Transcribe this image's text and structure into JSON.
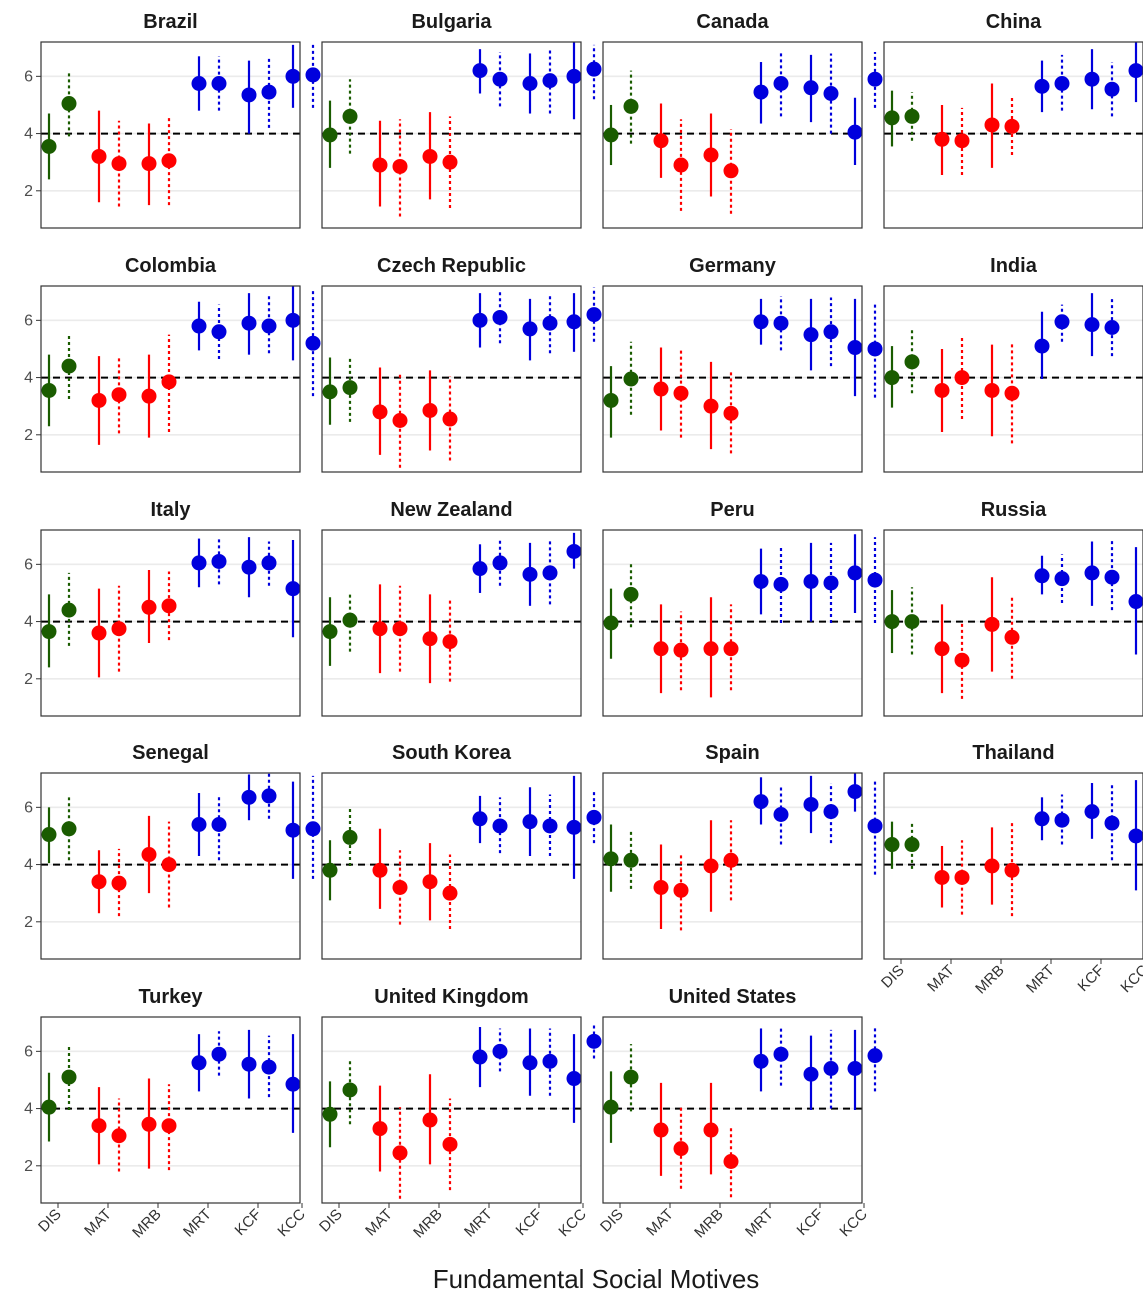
{
  "chart_data": {
    "type": "scatter",
    "subtype": "point-range facets",
    "xlabel": "Fundamental Social Motives",
    "categories": [
      "DIS",
      "MAT",
      "MRB",
      "MRT",
      "KCF",
      "KCC"
    ],
    "category_colors": {
      "DIS": "#1a5c00",
      "MAT": "#ff0000",
      "MRB": "#ff0000",
      "MRT": "#0000dd",
      "KCF": "#0000dd",
      "KCC": "#0000dd"
    },
    "series": [
      {
        "line_style": "solid"
      },
      {
        "line_style": "dotted"
      }
    ],
    "reference_line": 4,
    "ylim": [
      0.7,
      7.2
    ],
    "yticks": [
      2,
      4,
      6
    ],
    "grid": "horizontal major gridlines",
    "facets": [
      {
        "title": "Brazil",
        "solid": [
          [
            3.55,
            2.4,
            4.7
          ],
          [
            3.2,
            1.6,
            4.8
          ],
          [
            2.95,
            1.5,
            4.35
          ],
          [
            5.75,
            4.8,
            6.7
          ],
          [
            5.35,
            4.0,
            6.55
          ],
          [
            6.0,
            4.9,
            7.1
          ]
        ],
        "dotted": [
          [
            5.05,
            3.9,
            6.2
          ],
          [
            2.95,
            1.45,
            4.45
          ],
          [
            3.05,
            1.5,
            4.55
          ],
          [
            5.75,
            4.8,
            6.7
          ],
          [
            5.45,
            4.2,
            6.7
          ],
          [
            6.05,
            4.9,
            7.2
          ]
        ]
      },
      {
        "title": "Bulgaria",
        "solid": [
          [
            3.95,
            2.8,
            5.15
          ],
          [
            2.9,
            1.45,
            4.45
          ],
          [
            3.2,
            1.7,
            4.75
          ],
          [
            6.2,
            5.4,
            6.95
          ],
          [
            5.75,
            4.7,
            6.8
          ],
          [
            6.0,
            4.5,
            7.2
          ]
        ],
        "dotted": [
          [
            4.6,
            3.3,
            5.9
          ],
          [
            2.85,
            1.1,
            4.5
          ],
          [
            3.0,
            1.4,
            4.6
          ],
          [
            5.9,
            4.95,
            6.85
          ],
          [
            5.85,
            4.7,
            7.0
          ],
          [
            6.25,
            5.2,
            7.1
          ]
        ]
      },
      {
        "title": "Canada",
        "solid": [
          [
            3.95,
            2.9,
            5.0
          ],
          [
            3.75,
            2.45,
            5.05
          ],
          [
            3.25,
            1.8,
            4.7
          ],
          [
            5.45,
            4.35,
            6.5
          ],
          [
            5.6,
            4.4,
            6.75
          ],
          [
            4.05,
            2.9,
            5.25
          ]
        ],
        "dotted": [
          [
            4.95,
            3.65,
            6.2
          ],
          [
            2.9,
            1.3,
            4.5
          ],
          [
            2.7,
            1.2,
            4.15
          ],
          [
            5.75,
            4.6,
            6.9
          ],
          [
            5.4,
            4.0,
            6.8
          ],
          [
            5.9,
            4.9,
            6.85
          ]
        ]
      },
      {
        "title": "China",
        "solid": [
          [
            4.55,
            3.55,
            5.5
          ],
          [
            3.8,
            2.55,
            5.0
          ],
          [
            4.3,
            2.8,
            5.75
          ],
          [
            5.65,
            4.75,
            6.55
          ],
          [
            5.9,
            4.85,
            6.95
          ],
          [
            6.2,
            5.1,
            7.25
          ]
        ],
        "dotted": [
          [
            4.6,
            3.75,
            5.45
          ],
          [
            3.75,
            2.55,
            4.9
          ],
          [
            4.25,
            3.25,
            5.3
          ],
          [
            5.75,
            4.8,
            6.75
          ],
          [
            5.55,
            4.6,
            6.5
          ],
          null
        ]
      },
      {
        "title": "Colombia",
        "solid": [
          [
            3.55,
            2.3,
            4.8
          ],
          [
            3.2,
            1.65,
            4.75
          ],
          [
            3.35,
            1.9,
            4.8
          ],
          [
            5.8,
            4.95,
            6.65
          ],
          [
            5.9,
            4.8,
            6.95
          ],
          [
            6.0,
            4.6,
            7.2
          ]
        ],
        "dotted": [
          [
            4.4,
            3.25,
            5.5
          ],
          [
            3.4,
            2.05,
            4.7
          ],
          [
            3.85,
            2.1,
            5.5
          ],
          [
            5.6,
            4.65,
            6.55
          ],
          [
            5.8,
            4.85,
            6.9
          ],
          [
            5.2,
            3.35,
            7.05
          ]
        ]
      },
      {
        "title": "Czech Republic",
        "solid": [
          [
            3.5,
            2.35,
            4.7
          ],
          [
            2.8,
            1.3,
            4.35
          ],
          [
            2.85,
            1.45,
            4.25
          ],
          [
            6.0,
            5.05,
            6.95
          ],
          [
            5.7,
            4.6,
            6.75
          ],
          [
            5.95,
            4.9,
            6.95
          ]
        ],
        "dotted": [
          [
            3.65,
            2.45,
            4.75
          ],
          [
            2.5,
            0.85,
            4.1
          ],
          [
            2.55,
            1.1,
            4.05
          ],
          [
            6.1,
            5.2,
            7.0
          ],
          [
            5.9,
            4.85,
            6.9
          ],
          [
            6.2,
            5.25,
            7.15
          ]
        ]
      },
      {
        "title": "Germany",
        "solid": [
          [
            3.2,
            1.9,
            4.4
          ],
          [
            3.6,
            2.15,
            5.05
          ],
          [
            3.0,
            1.5,
            4.55
          ],
          [
            5.95,
            5.15,
            6.75
          ],
          [
            5.5,
            4.25,
            6.75
          ],
          [
            5.05,
            3.35,
            6.75
          ]
        ],
        "dotted": [
          [
            3.95,
            2.7,
            5.25
          ],
          [
            3.45,
            1.9,
            4.95
          ],
          [
            2.75,
            1.35,
            4.25
          ],
          [
            5.9,
            4.95,
            6.85
          ],
          [
            5.6,
            4.4,
            6.8
          ],
          [
            5.0,
            3.3,
            6.65
          ]
        ]
      },
      {
        "title": "India",
        "solid": [
          [
            4.0,
            2.95,
            5.1
          ],
          [
            3.55,
            2.1,
            5.0
          ],
          [
            3.55,
            1.95,
            5.15
          ],
          [
            5.1,
            3.95,
            6.3
          ],
          [
            5.85,
            4.75,
            6.95
          ],
          null
        ],
        "dotted": [
          [
            4.55,
            3.45,
            5.7
          ],
          [
            4.0,
            2.55,
            5.45
          ],
          [
            3.45,
            1.7,
            5.25
          ],
          [
            5.95,
            5.25,
            6.55
          ],
          [
            5.75,
            4.75,
            6.75
          ],
          null
        ]
      },
      {
        "title": "Italy",
        "solid": [
          [
            3.65,
            2.4,
            4.95
          ],
          [
            3.6,
            2.05,
            5.15
          ],
          [
            4.5,
            3.25,
            5.8
          ],
          [
            6.05,
            5.2,
            6.9
          ],
          [
            5.9,
            4.85,
            6.95
          ],
          [
            5.15,
            3.45,
            6.85
          ]
        ],
        "dotted": [
          [
            4.4,
            3.15,
            5.7
          ],
          [
            3.75,
            2.25,
            5.25
          ],
          [
            4.55,
            3.35,
            5.75
          ],
          [
            6.1,
            5.3,
            6.9
          ],
          [
            6.05,
            5.25,
            6.8
          ],
          null
        ]
      },
      {
        "title": "New Zealand",
        "solid": [
          [
            3.65,
            2.45,
            4.85
          ],
          [
            3.75,
            2.2,
            5.3
          ],
          [
            3.4,
            1.85,
            4.95
          ],
          [
            5.85,
            5.0,
            6.7
          ],
          [
            5.65,
            4.55,
            6.75
          ],
          [
            6.45,
            5.85,
            7.1
          ]
        ],
        "dotted": [
          [
            4.05,
            2.95,
            4.95
          ],
          [
            3.75,
            2.25,
            5.25
          ],
          [
            3.3,
            1.9,
            4.8
          ],
          [
            6.05,
            5.25,
            6.85
          ],
          [
            5.7,
            4.6,
            6.85
          ],
          null
        ]
      },
      {
        "title": "Peru",
        "solid": [
          [
            3.95,
            2.7,
            5.15
          ],
          [
            3.05,
            1.5,
            4.6
          ],
          [
            3.05,
            1.35,
            4.85
          ],
          [
            5.4,
            4.25,
            6.55
          ],
          [
            5.4,
            4.0,
            6.75
          ],
          [
            5.7,
            4.3,
            7.05
          ]
        ],
        "dotted": [
          [
            4.95,
            3.8,
            6.1
          ],
          [
            3.0,
            1.6,
            4.35
          ],
          [
            3.05,
            1.6,
            4.6
          ],
          [
            5.3,
            3.95,
            6.6
          ],
          [
            5.35,
            3.95,
            6.75
          ],
          [
            5.45,
            3.95,
            6.95
          ]
        ]
      },
      {
        "title": "Russia",
        "solid": [
          [
            4.0,
            2.9,
            5.1
          ],
          [
            3.05,
            1.5,
            4.6
          ],
          [
            3.9,
            2.25,
            5.55
          ],
          [
            5.6,
            4.95,
            6.3
          ],
          [
            5.7,
            4.55,
            6.8
          ],
          [
            4.7,
            2.85,
            6.6
          ]
        ],
        "dotted": [
          [
            4.0,
            2.85,
            5.2
          ],
          [
            2.65,
            1.3,
            3.95
          ],
          [
            3.45,
            2.0,
            4.9
          ],
          [
            5.5,
            4.65,
            6.35
          ],
          [
            5.55,
            4.4,
            6.9
          ],
          null
        ]
      },
      {
        "title": "Senegal",
        "solid": [
          [
            5.05,
            4.05,
            6.0
          ],
          [
            3.4,
            2.3,
            4.5
          ],
          [
            4.35,
            3.0,
            5.7
          ],
          [
            5.4,
            4.3,
            6.5
          ],
          [
            6.35,
            5.55,
            7.15
          ],
          [
            5.2,
            3.5,
            6.9
          ]
        ],
        "dotted": [
          [
            5.25,
            4.15,
            6.35
          ],
          [
            3.35,
            2.2,
            4.55
          ],
          [
            4.0,
            2.5,
            5.5
          ],
          [
            5.4,
            4.15,
            6.45
          ],
          [
            6.4,
            5.6,
            7.2
          ],
          [
            5.25,
            3.5,
            7.1
          ]
        ]
      },
      {
        "title": "South Korea",
        "solid": [
          [
            3.8,
            2.75,
            4.85
          ],
          [
            3.8,
            2.45,
            5.25
          ],
          [
            3.4,
            2.05,
            4.75
          ],
          [
            5.6,
            4.75,
            6.4
          ],
          [
            5.5,
            4.3,
            6.7
          ],
          [
            5.3,
            3.5,
            7.1
          ]
        ],
        "dotted": [
          [
            4.95,
            3.95,
            5.95
          ],
          [
            3.2,
            1.9,
            4.5
          ],
          [
            3.0,
            1.75,
            4.35
          ],
          [
            5.35,
            4.4,
            6.35
          ],
          [
            5.35,
            4.3,
            6.45
          ],
          [
            5.65,
            4.75,
            6.6
          ]
        ]
      },
      {
        "title": "Spain",
        "solid": [
          [
            4.2,
            3.05,
            5.4
          ],
          [
            3.2,
            1.75,
            4.7
          ],
          [
            3.95,
            2.35,
            5.55
          ],
          [
            6.2,
            5.4,
            7.05
          ],
          [
            6.1,
            5.1,
            7.1
          ],
          [
            6.55,
            5.85,
            7.2
          ]
        ],
        "dotted": [
          [
            4.15,
            3.15,
            5.2
          ],
          [
            3.1,
            1.7,
            4.4
          ],
          [
            4.15,
            2.75,
            5.55
          ],
          [
            5.75,
            4.7,
            6.7
          ],
          [
            5.85,
            4.75,
            6.85
          ],
          [
            5.35,
            3.65,
            7.0
          ]
        ]
      },
      {
        "title": "Thailand",
        "solid": [
          [
            4.7,
            3.85,
            5.5
          ],
          [
            3.55,
            2.5,
            4.65
          ],
          [
            3.95,
            2.6,
            5.3
          ],
          [
            5.6,
            4.85,
            6.35
          ],
          [
            5.85,
            4.9,
            6.85
          ],
          [
            5.0,
            3.1,
            6.95
          ]
        ],
        "dotted": [
          [
            4.7,
            3.85,
            5.45
          ],
          [
            3.55,
            2.25,
            4.85
          ],
          [
            3.8,
            2.2,
            5.45
          ],
          [
            5.55,
            4.7,
            6.45
          ],
          [
            5.45,
            4.15,
            6.8
          ],
          null
        ]
      },
      {
        "title": "Turkey",
        "solid": [
          [
            4.05,
            2.85,
            5.25
          ],
          [
            3.4,
            2.05,
            4.75
          ],
          [
            3.45,
            1.9,
            5.05
          ],
          [
            5.6,
            4.6,
            6.6
          ],
          [
            5.55,
            4.35,
            6.75
          ],
          [
            4.85,
            3.15,
            6.6
          ]
        ],
        "dotted": [
          [
            5.1,
            3.95,
            6.25
          ],
          [
            3.05,
            1.8,
            4.35
          ],
          [
            3.4,
            1.85,
            4.85
          ],
          [
            5.9,
            5.15,
            6.7
          ],
          [
            5.45,
            4.4,
            6.55
          ],
          null
        ]
      },
      {
        "title": "United Kingdom",
        "solid": [
          [
            3.8,
            2.65,
            4.95
          ],
          [
            3.3,
            1.8,
            4.8
          ],
          [
            3.6,
            2.05,
            5.2
          ],
          [
            5.8,
            4.75,
            6.85
          ],
          [
            5.6,
            4.45,
            6.8
          ],
          [
            5.05,
            3.5,
            6.6
          ]
        ],
        "dotted": [
          [
            4.65,
            3.45,
            5.75
          ],
          [
            2.45,
            0.85,
            4.05
          ],
          [
            2.75,
            1.15,
            4.35
          ],
          [
            6.0,
            5.3,
            6.8
          ],
          [
            5.65,
            4.45,
            6.8
          ],
          [
            6.35,
            5.75,
            6.95
          ]
        ]
      },
      {
        "title": "United States",
        "solid": [
          [
            4.05,
            2.8,
            5.3
          ],
          [
            3.25,
            1.65,
            4.9
          ],
          [
            3.25,
            1.7,
            4.9
          ],
          [
            5.65,
            4.6,
            6.8
          ],
          [
            5.2,
            3.95,
            6.55
          ],
          [
            5.4,
            3.95,
            6.75
          ]
        ],
        "dotted": [
          [
            5.1,
            3.9,
            6.25
          ],
          [
            2.6,
            1.2,
            4.05
          ],
          [
            2.15,
            0.9,
            3.35
          ],
          [
            5.9,
            4.8,
            6.9
          ],
          [
            5.4,
            4.0,
            6.75
          ],
          [
            5.85,
            4.6,
            6.9
          ]
        ]
      }
    ]
  }
}
